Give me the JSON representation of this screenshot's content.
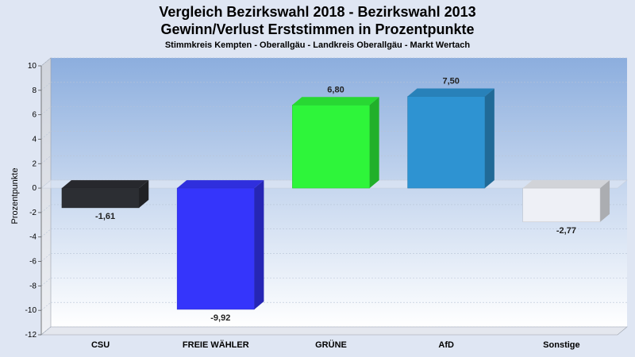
{
  "chart_data": {
    "type": "bar",
    "title": "Vergleich Bezirkswahl 2018 - Bezirkswahl 2013",
    "title2": "Gewinn/Verlust Erststimmen in Prozentpunkte",
    "subtitle": "Stimmkreis Kempten - Oberallgäu - Landkreis Oberallgäu - Markt Wertach",
    "ylabel": "Prozentpunkte",
    "xlabel": "",
    "ylim": [
      -12,
      10
    ],
    "yticks": [
      10,
      8,
      6,
      4,
      2,
      0,
      -2,
      -4,
      -6,
      -8,
      -10,
      -12
    ],
    "categories": [
      "CSU",
      "FREIE WÄHLER",
      "GRÜNE",
      "AfD",
      "Sonstige"
    ],
    "values": [
      -1.61,
      -9.92,
      6.8,
      7.5,
      -2.77
    ],
    "value_labels": [
      "-1,61",
      "-9,92",
      "6,80",
      "7,50",
      "-2,77"
    ],
    "colors": [
      "#2c2e33",
      "#3535fb",
      "#2ef53a",
      "#2e93d2",
      "#eef0f6"
    ],
    "grid": true,
    "legend": "none"
  }
}
